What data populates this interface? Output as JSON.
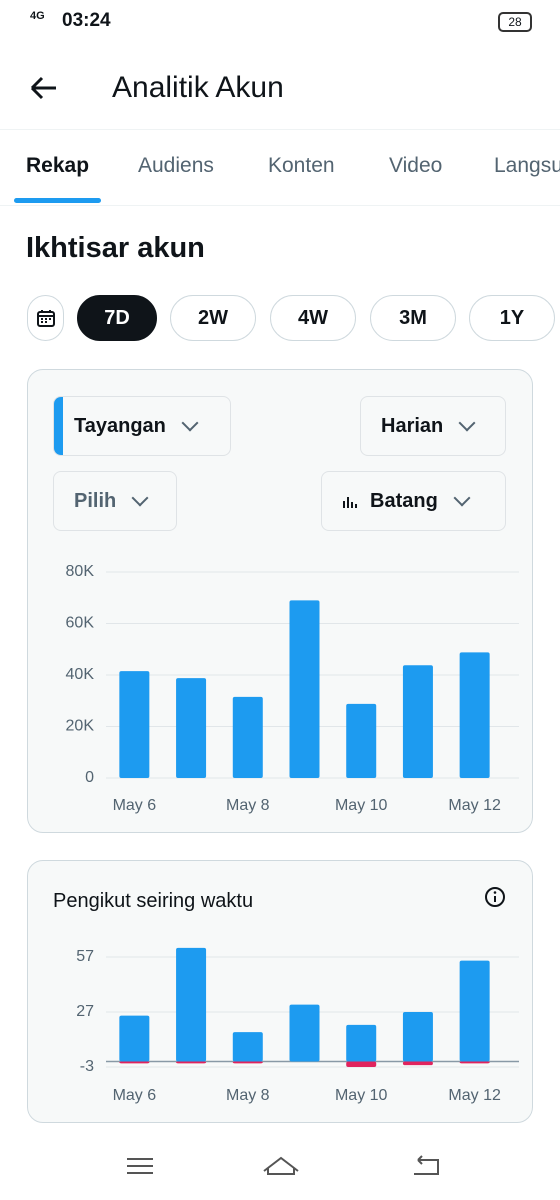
{
  "status_bar": {
    "network": "4G",
    "time": "03:24",
    "battery": "28"
  },
  "header": {
    "title": "Analitik Akun"
  },
  "tabs": [
    "Rekap",
    "Audiens",
    "Konten",
    "Video",
    "Langsung"
  ],
  "section_title": "Ikhtisar akun",
  "ranges": [
    "7D",
    "2W",
    "4W",
    "3M",
    "1Y"
  ],
  "card1": {
    "metric": "Tayangan",
    "period": "Harian",
    "compare": "Pilih",
    "chart_style": "Batang",
    "chart": {
      "type": "bar",
      "categories": [
        "May 6",
        null,
        "May 8",
        null,
        "May 10",
        null,
        "May 12"
      ],
      "series": [
        {
          "color": "#1d9bf0",
          "values": [
            41500,
            38800,
            31500,
            69000,
            28800,
            43800,
            48800
          ]
        }
      ],
      "ylim": [
        0,
        80000
      ],
      "yticks": [
        0,
        {
          "value": 20000,
          "label": "20K"
        },
        {
          "value": 40000,
          "label": "40K"
        },
        {
          "value": 60000,
          "label": "60K"
        },
        {
          "value": 80000,
          "label": "80K"
        }
      ],
      "grid": true
    }
  },
  "card2": {
    "title": "Pengikut seiring waktu",
    "chart": {
      "type": "bar",
      "categories": [
        "May 6",
        null,
        "May 8",
        null,
        "May 10",
        null,
        "May 12"
      ],
      "series": [
        {
          "color": "#1d9bf0",
          "values": [
            25,
            62,
            16,
            31,
            20,
            27,
            55
          ]
        },
        {
          "color": "#e0245e",
          "values": [
            -1,
            -1,
            -1,
            0,
            -3,
            -2,
            -1
          ]
        }
      ],
      "ylim": [
        -3,
        63
      ],
      "yticks": [
        -3,
        27,
        57
      ],
      "grid": true
    }
  }
}
